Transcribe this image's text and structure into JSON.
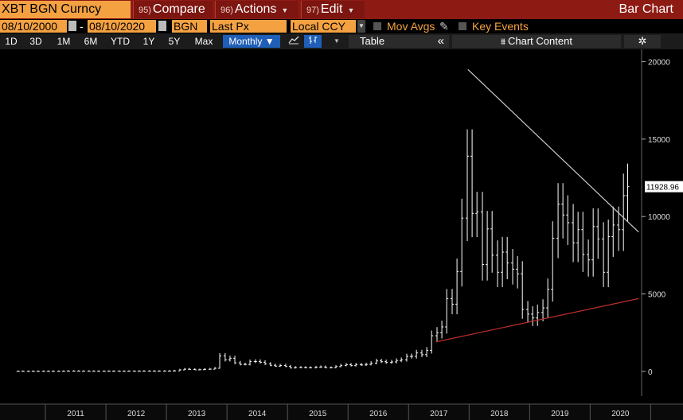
{
  "header": {
    "security": "XBT BGN Curncy",
    "menus": [
      {
        "num": "95)",
        "label": "Compare"
      },
      {
        "num": "96)",
        "label": "Actions"
      },
      {
        "num": "97)",
        "label": "Edit"
      }
    ],
    "chart_title": "Bar Chart"
  },
  "params": {
    "start_date": "08/10/2000",
    "end_date": "08/10/2020",
    "source": "BGN",
    "field": "Last Px",
    "currency": "Local CCY",
    "mov_avgs": "Mov Avgs",
    "key_events": "Key Events"
  },
  "toolbar": {
    "ranges": [
      "1D",
      "3D",
      "1M",
      "6M",
      "YTD",
      "1Y",
      "5Y",
      "Max"
    ],
    "period": "Monthly ▼",
    "table": "Table",
    "collapse": "«",
    "chart_content": "Chart Content",
    "settings_icon": "gear-icon"
  },
  "chart_data": {
    "type": "bar",
    "subtype": "ohlc",
    "title": "",
    "x_ticks": [
      "2011",
      "2012",
      "2013",
      "2014",
      "2015",
      "2016",
      "2017",
      "2018",
      "2019",
      "2020"
    ],
    "y_ticks": [
      "20000",
      "15000",
      "10000",
      "5000",
      "0"
    ],
    "ylim": [
      -1600,
      20800
    ],
    "last_price_label": "11928.96",
    "last_price": 11928.96,
    "colors": {
      "bars": "#ffffff",
      "resistance_line": "#cccccc",
      "support_line": "#c0302a",
      "last_price_tag": "#ffffff"
    },
    "series": [
      {
        "name": "XBT BGN Curncy",
        "bars": [
          [
            2010.55,
            0.1
          ],
          [
            2010.63,
            0.1
          ],
          [
            2010.72,
            0.2
          ],
          [
            2010.8,
            0.3
          ],
          [
            2010.88,
            0.3
          ],
          [
            2010.97,
            0.5
          ],
          [
            2011.05,
            0.9
          ],
          [
            2011.13,
            1
          ],
          [
            2011.22,
            1
          ],
          [
            2011.3,
            5
          ],
          [
            2011.38,
            15
          ],
          [
            2011.47,
            13
          ],
          [
            2011.55,
            9
          ],
          [
            2011.63,
            8
          ],
          [
            2011.72,
            5
          ],
          [
            2011.8,
            3
          ],
          [
            2011.88,
            3
          ],
          [
            2011.97,
            4
          ],
          [
            2012.05,
            6
          ],
          [
            2012.13,
            5
          ],
          [
            2012.22,
            5
          ],
          [
            2012.3,
            5
          ],
          [
            2012.38,
            6
          ],
          [
            2012.47,
            7
          ],
          [
            2012.55,
            10
          ],
          [
            2012.63,
            11
          ],
          [
            2012.72,
            12
          ],
          [
            2012.8,
            11
          ],
          [
            2012.88,
            13
          ],
          [
            2012.97,
            14
          ],
          [
            2013.05,
            20
          ],
          [
            2013.13,
            33
          ],
          [
            2013.22,
            94
          ],
          [
            2013.3,
            140
          ],
          [
            2013.38,
            130
          ],
          [
            2013.47,
            97
          ],
          [
            2013.55,
            106
          ],
          [
            2013.63,
            135
          ],
          [
            2013.72,
            141
          ],
          [
            2013.8,
            200
          ],
          [
            2013.88,
            1000
          ],
          [
            2013.97,
            750
          ],
          [
            2014.05,
            850
          ],
          [
            2014.13,
            550
          ],
          [
            2014.22,
            450
          ],
          [
            2014.3,
            450
          ],
          [
            2014.38,
            630
          ],
          [
            2014.47,
            640
          ],
          [
            2014.55,
            590
          ],
          [
            2014.63,
            480
          ],
          [
            2014.72,
            390
          ],
          [
            2014.8,
            340
          ],
          [
            2014.88,
            380
          ],
          [
            2014.97,
            320
          ],
          [
            2015.05,
            220
          ],
          [
            2015.13,
            250
          ],
          [
            2015.22,
            245
          ],
          [
            2015.3,
            235
          ],
          [
            2015.38,
            230
          ],
          [
            2015.47,
            265
          ],
          [
            2015.55,
            285
          ],
          [
            2015.63,
            230
          ],
          [
            2015.72,
            235
          ],
          [
            2015.8,
            310
          ],
          [
            2015.88,
            380
          ],
          [
            2015.97,
            430
          ],
          [
            2016.05,
            370
          ],
          [
            2016.13,
            435
          ],
          [
            2016.22,
            415
          ],
          [
            2016.3,
            450
          ],
          [
            2016.38,
            530
          ],
          [
            2016.47,
            675
          ],
          [
            2016.55,
            625
          ],
          [
            2016.63,
            575
          ],
          [
            2016.72,
            610
          ],
          [
            2016.8,
            700
          ],
          [
            2016.88,
            745
          ],
          [
            2016.97,
            965
          ],
          [
            2017.05,
            970
          ],
          [
            2017.13,
            1190
          ],
          [
            2017.22,
            1080
          ],
          [
            2017.3,
            1350
          ],
          [
            2017.38,
            2300
          ],
          [
            2017.47,
            2500
          ],
          [
            2017.55,
            2870
          ],
          [
            2017.63,
            4700
          ],
          [
            2017.72,
            4340
          ],
          [
            2017.8,
            6450
          ],
          [
            2017.88,
            9900
          ],
          [
            2017.97,
            13900
          ],
          [
            2018.05,
            10200
          ],
          [
            2018.13,
            10300
          ],
          [
            2018.22,
            6900
          ],
          [
            2018.3,
            9200
          ],
          [
            2018.38,
            7500
          ],
          [
            2018.47,
            6400
          ],
          [
            2018.55,
            7700
          ],
          [
            2018.63,
            7000
          ],
          [
            2018.72,
            6600
          ],
          [
            2018.8,
            6300
          ],
          [
            2018.88,
            4000
          ],
          [
            2018.97,
            3700
          ],
          [
            2019.05,
            3450
          ],
          [
            2019.13,
            3800
          ],
          [
            2019.22,
            4100
          ],
          [
            2019.3,
            5300
          ],
          [
            2019.38,
            8600
          ],
          [
            2019.47,
            10800
          ],
          [
            2019.55,
            10100
          ],
          [
            2019.63,
            9600
          ],
          [
            2019.72,
            8300
          ],
          [
            2019.8,
            9150
          ],
          [
            2019.88,
            7550
          ],
          [
            2019.97,
            7200
          ],
          [
            2020.05,
            9350
          ],
          [
            2020.13,
            8550
          ],
          [
            2020.22,
            6400
          ],
          [
            2020.3,
            8700
          ],
          [
            2020.38,
            9450
          ],
          [
            2020.47,
            9150
          ],
          [
            2020.55,
            11350
          ],
          [
            2020.62,
            11929
          ]
        ]
      }
    ]
  }
}
